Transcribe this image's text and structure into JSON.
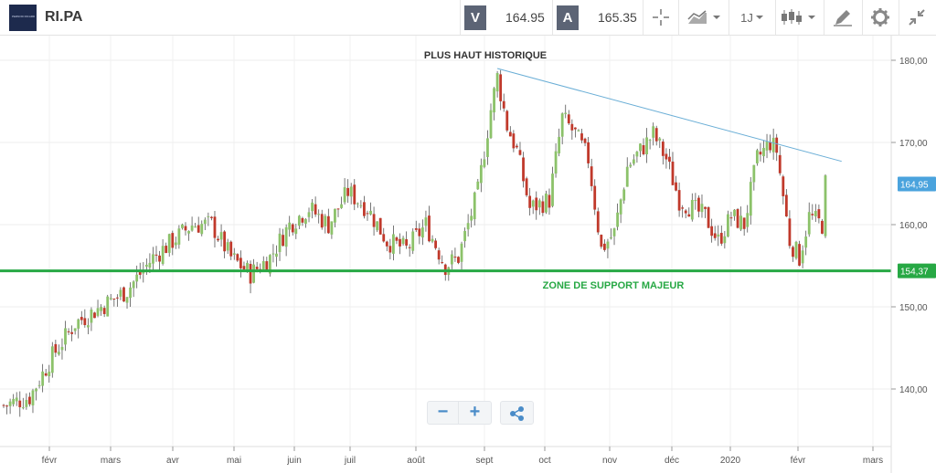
{
  "header": {
    "logo_text": "PERNOD RICARD",
    "symbol": "RI.PA",
    "sell_label": "V",
    "sell_price": "164.95",
    "buy_label": "A",
    "buy_price": "165.35",
    "interval_label": "1J"
  },
  "colors": {
    "up": "#8cc26a",
    "down": "#c0392b",
    "support": "#27a844",
    "trendline": "#6aaed6",
    "current_price": "#4aa3dd"
  },
  "chart_data": {
    "type": "candlestick",
    "title": "",
    "xlabel": "",
    "ylabel": "",
    "ylim": [
      133,
      183
    ],
    "x_tick_labels": [
      "févr",
      "mars",
      "avr",
      "mai",
      "juin",
      "juil",
      "août",
      "sept",
      "oct",
      "nov",
      "déc",
      "2020",
      "févr",
      "mars"
    ],
    "y_ticks": [
      140,
      150,
      160,
      170,
      180
    ],
    "y_tick_labels": [
      "140,00",
      "150,00",
      "160,00",
      "170,00",
      "180,00"
    ],
    "trend_anchor_closes": [
      [
        0,
        138
      ],
      [
        8,
        139
      ],
      [
        15,
        144
      ],
      [
        22,
        148
      ],
      [
        30,
        150
      ],
      [
        38,
        152
      ],
      [
        46,
        156
      ],
      [
        52,
        158
      ],
      [
        58,
        160
      ],
      [
        64,
        160
      ],
      [
        70,
        156
      ],
      [
        76,
        154
      ],
      [
        82,
        156
      ],
      [
        88,
        160
      ],
      [
        94,
        162
      ],
      [
        100,
        160
      ],
      [
        106,
        164
      ],
      [
        112,
        162
      ],
      [
        118,
        158
      ],
      [
        124,
        157
      ],
      [
        130,
        160
      ],
      [
        136,
        155
      ],
      [
        140,
        156
      ],
      [
        146,
        164
      ],
      [
        150,
        174
      ],
      [
        152,
        178
      ],
      [
        155,
        172
      ],
      [
        158,
        169
      ],
      [
        162,
        162
      ],
      [
        168,
        163
      ],
      [
        172,
        173
      ],
      [
        176,
        171
      ],
      [
        180,
        168
      ],
      [
        184,
        157
      ],
      [
        188,
        159
      ],
      [
        192,
        167
      ],
      [
        196,
        169
      ],
      [
        200,
        171
      ],
      [
        204,
        168
      ],
      [
        208,
        163
      ],
      [
        212,
        162
      ],
      [
        216,
        161
      ],
      [
        220,
        158
      ],
      [
        224,
        161
      ],
      [
        228,
        160
      ],
      [
        232,
        168
      ],
      [
        236,
        170
      ],
      [
        238,
        169
      ],
      [
        242,
        158
      ],
      [
        245,
        156
      ],
      [
        248,
        161
      ],
      [
        252,
        160
      ],
      [
        253,
        165
      ]
    ],
    "candle_count": 254,
    "annotations": {
      "ath_label": "PLUS HAUT HISTORIQUE",
      "support_label": "ZONE DE SUPPORT MAJEUR",
      "support_level": 154.37,
      "support_level_label": "154,37",
      "current_price": 164.95,
      "current_price_label": "164,95",
      "trendline": [
        [
          152,
          179
        ],
        [
          258,
          167.7
        ]
      ]
    },
    "grid": true,
    "legend": "none"
  }
}
